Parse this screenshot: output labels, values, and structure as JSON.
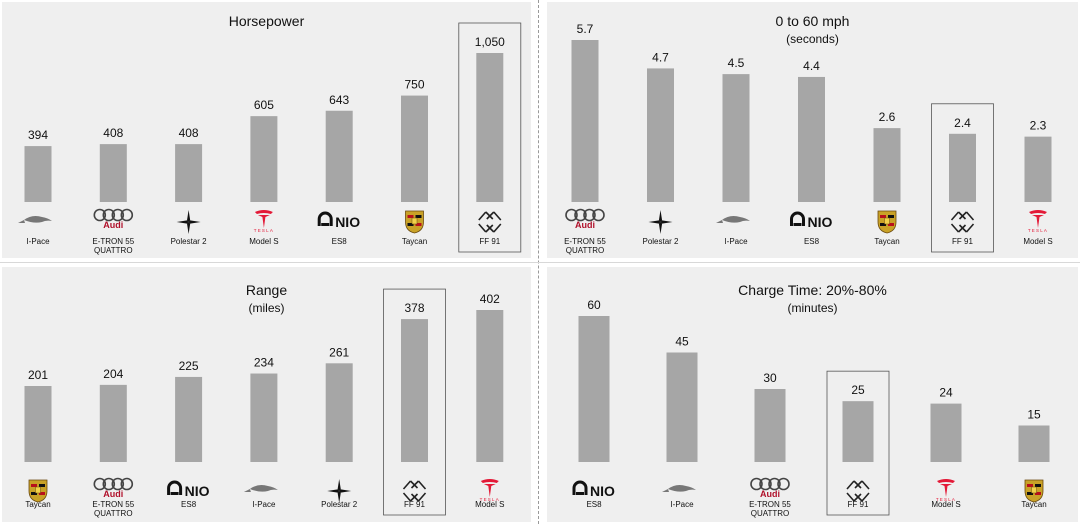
{
  "colors": {
    "bar": "#a6a6a6",
    "panel": "#efefef",
    "highlight_box": "#555555",
    "tesla_red": "#e31937",
    "audi": "#444444"
  },
  "chart_data": [
    {
      "id": "hp",
      "type": "bar",
      "title": "Horsepower",
      "subtitle": "",
      "categories": [
        "I-Pace",
        "E-TRON 55 QUATTRO",
        "Polestar 2",
        "Model S",
        "ES8",
        "Taycan",
        "FF 91"
      ],
      "category_lines": [
        [
          "I-Pace"
        ],
        [
          "E-TRON 55",
          "QUATTRO"
        ],
        [
          "Polestar 2"
        ],
        [
          "Model S"
        ],
        [
          "ES8"
        ],
        [
          "Taycan"
        ],
        [
          "FF 91"
        ]
      ],
      "brands": [
        "jaguar",
        "audi",
        "polestar",
        "tesla",
        "nio",
        "porsche",
        "ff"
      ],
      "values": [
        394,
        408,
        408,
        605,
        643,
        750,
        1050
      ],
      "value_labels": [
        "394",
        "408",
        "408",
        "605",
        "643",
        "750",
        "1,050"
      ],
      "highlight": "FF 91",
      "ylim": [
        0,
        1050
      ]
    },
    {
      "id": "accel",
      "type": "bar",
      "title": "0 to 60 mph",
      "subtitle": "(seconds)",
      "categories": [
        "E-TRON 55 QUATTRO",
        "Polestar 2",
        "I-Pace",
        "ES8",
        "Taycan",
        "FF 91",
        "Model S"
      ],
      "category_lines": [
        [
          "E-TRON 55",
          "QUATTRO"
        ],
        [
          "Polestar 2"
        ],
        [
          "I-Pace"
        ],
        [
          "ES8"
        ],
        [
          "Taycan"
        ],
        [
          "FF 91"
        ],
        [
          "Model S"
        ]
      ],
      "brands": [
        "audi",
        "polestar",
        "jaguar",
        "nio",
        "porsche",
        "ff",
        "tesla"
      ],
      "values": [
        5.7,
        4.7,
        4.5,
        4.4,
        2.6,
        2.4,
        2.3
      ],
      "value_labels": [
        "5.7",
        "4.7",
        "4.5",
        "4.4",
        "2.6",
        "2.4",
        "2.3"
      ],
      "highlight": "FF 91",
      "ylim": [
        0,
        5.7
      ]
    },
    {
      "id": "range",
      "type": "bar",
      "title": "Range",
      "subtitle": "(miles)",
      "categories": [
        "Taycan",
        "E-TRON 55 QUATTRO",
        "ES8",
        "I-Pace",
        "Polestar 2",
        "FF 91",
        "Model S"
      ],
      "category_lines": [
        [
          "Taycan"
        ],
        [
          "E-TRON 55",
          "QUATTRO"
        ],
        [
          "ES8"
        ],
        [
          "I-Pace"
        ],
        [
          "Polestar 2"
        ],
        [
          "FF 91"
        ],
        [
          "Model S"
        ]
      ],
      "brands": [
        "porsche",
        "audi",
        "nio",
        "jaguar",
        "polestar",
        "ff",
        "tesla"
      ],
      "values": [
        201,
        204,
        225,
        234,
        261,
        378,
        402
      ],
      "value_labels": [
        "201",
        "204",
        "225",
        "234",
        "261",
        "378",
        "402"
      ],
      "highlight": "FF 91",
      "ylim": [
        0,
        402
      ]
    },
    {
      "id": "charge",
      "type": "bar",
      "title": "Charge Time: 20%-80%",
      "subtitle": "(minutes)",
      "categories": [
        "ES8",
        "I-Pace",
        "E-TRON 55 QUATTRO",
        "FF 91",
        "Model S",
        "Taycan"
      ],
      "category_lines": [
        [
          "ES8"
        ],
        [
          "I-Pace"
        ],
        [
          "E-TRON 55",
          "QUATTRO"
        ],
        [
          "FF 91"
        ],
        [
          "Model S"
        ],
        [
          "Taycan"
        ]
      ],
      "brands": [
        "nio",
        "jaguar",
        "audi",
        "ff",
        "tesla",
        "porsche"
      ],
      "values": [
        60,
        45,
        30,
        25,
        24,
        15
      ],
      "value_labels": [
        "60",
        "45",
        "30",
        "25",
        "24",
        "15"
      ],
      "highlight": "FF 91",
      "ylim": [
        0,
        60
      ]
    }
  ],
  "logos": {
    "nio": "NIO",
    "audi": "Audi",
    "tesla": "TESLA",
    "jaguar": "JAGUAR"
  }
}
